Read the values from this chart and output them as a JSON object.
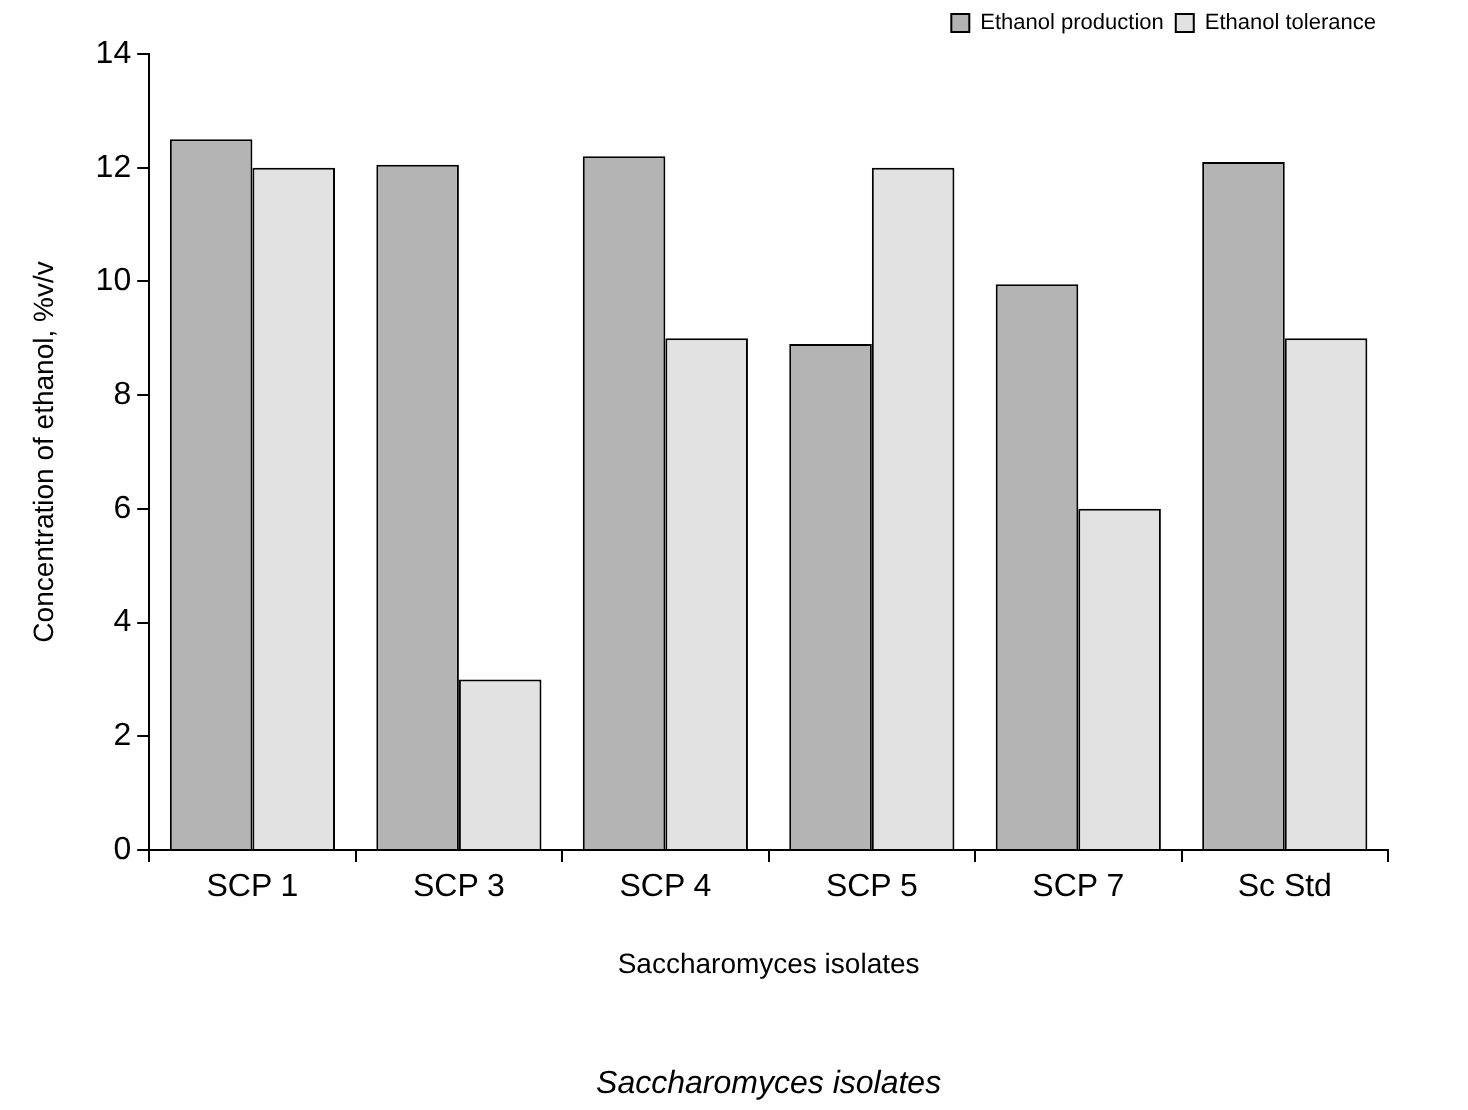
{
  "chart_data": {
    "type": "bar",
    "xlabel": "Saccharomyces isolates",
    "ylabel": "Concentration of ethanol, %v/v",
    "categories": [
      "SCP 1",
      "SCP 3",
      "SCP 4",
      "SCP 5",
      "SCP 7",
      "Sc Std"
    ],
    "series": [
      {
        "name": "Ethanol production",
        "color": "#b4b4b4",
        "values": [
          12.5,
          12.05,
          12.2,
          8.9,
          9.95,
          12.1
        ]
      },
      {
        "name": "Ethanol tolerance",
        "color": "#e2e2e2",
        "values": [
          12,
          3,
          9,
          12,
          6,
          9
        ]
      }
    ],
    "ylim": [
      0,
      14
    ],
    "yticks": [
      0,
      2,
      4,
      6,
      8,
      10,
      12,
      14
    ],
    "grid": false,
    "legend": "top right",
    "annotations": [
      "Saccharomyces isolates"
    ]
  }
}
